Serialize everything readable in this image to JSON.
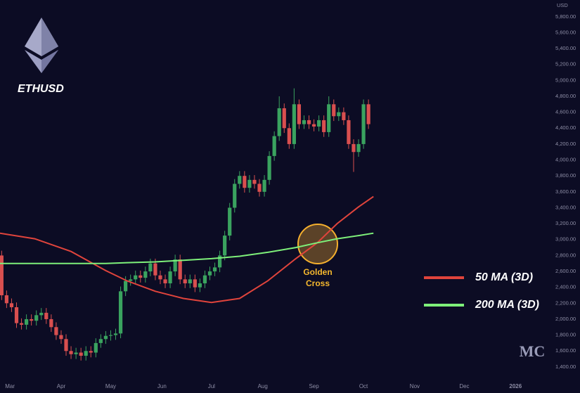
{
  "chart_data": {
    "type": "candlestick",
    "title": "ETHUSD",
    "y_axis_label": "USD",
    "annotation": [
      "Golden",
      "Cross"
    ],
    "watermark": "MC",
    "up_color": "#3aa35f",
    "down_color": "#d94f4f",
    "xlim": [
      -6,
      328
    ],
    "ylim": [
      1240,
      6010
    ],
    "xticks": [
      {
        "value": 0,
        "label": "Mar"
      },
      {
        "value": 31,
        "label": "Apr"
      },
      {
        "value": 61,
        "label": "May"
      },
      {
        "value": 92,
        "label": "Jun"
      },
      {
        "value": 122,
        "label": "Jul"
      },
      {
        "value": 153,
        "label": "Aug"
      },
      {
        "value": 184,
        "label": "Sep"
      },
      {
        "value": 214,
        "label": "Oct"
      },
      {
        "value": 245,
        "label": "Nov"
      },
      {
        "value": 275,
        "label": "Dec"
      },
      {
        "value": 306,
        "label": "2026"
      }
    ],
    "yticks": [
      {
        "value": 1400,
        "label": "1,400.00"
      },
      {
        "value": 1600,
        "label": "1,600.00"
      },
      {
        "value": 1800,
        "label": "1,800.00"
      },
      {
        "value": 2000,
        "label": "2,000.00"
      },
      {
        "value": 2200,
        "label": "2,200.00"
      },
      {
        "value": 2400,
        "label": "2,400.00"
      },
      {
        "value": 2600,
        "label": "2,600.00"
      },
      {
        "value": 2800,
        "label": "2,800.00"
      },
      {
        "value": 3000,
        "label": "3,000.00"
      },
      {
        "value": 3200,
        "label": "3,200.00"
      },
      {
        "value": 3400,
        "label": "3,400.00"
      },
      {
        "value": 3600,
        "label": "3,600.00"
      },
      {
        "value": 3800,
        "label": "3,800.00"
      },
      {
        "value": 4000,
        "label": "4,000.00"
      },
      {
        "value": 4200,
        "label": "4,200.00"
      },
      {
        "value": 4400,
        "label": "4,400.00"
      },
      {
        "value": 4600,
        "label": "4,600.00"
      },
      {
        "value": 4800,
        "label": "4,800.00"
      },
      {
        "value": 5000,
        "label": "5,000.00"
      },
      {
        "value": 5200,
        "label": "5,200.00"
      },
      {
        "value": 5400,
        "label": "5,400.00"
      },
      {
        "value": 5600,
        "label": "5,600.00"
      },
      {
        "value": 5800,
        "label": "5,800.00"
      }
    ],
    "x": [
      -5,
      -2,
      1,
      4,
      7,
      10,
      13,
      16,
      19,
      22,
      25,
      28,
      31,
      34,
      37,
      40,
      43,
      46,
      49,
      52,
      55,
      58,
      61,
      64,
      67,
      70,
      73,
      76,
      79,
      82,
      85,
      88,
      91,
      94,
      97,
      100,
      103,
      106,
      109,
      112,
      115,
      118,
      121,
      124,
      127,
      130,
      133,
      136,
      139,
      142,
      145,
      148,
      151,
      154,
      157,
      160,
      163,
      166,
      169,
      172,
      175,
      178,
      181,
      184,
      187,
      190,
      193,
      196,
      199,
      202,
      205,
      208,
      211,
      214,
      217
    ],
    "open": [
      2800,
      2300,
      2200,
      2150,
      1950,
      1930,
      2000,
      1980,
      2050,
      2080,
      2000,
      1900,
      1800,
      1750,
      1600,
      1560,
      1580,
      1540,
      1600,
      1580,
      1700,
      1750,
      1790,
      1800,
      1820,
      2350,
      2480,
      2500,
      2550,
      2520,
      2600,
      2700,
      2550,
      2500,
      2450,
      2600,
      2750,
      2500,
      2450,
      2500,
      2400,
      2450,
      2550,
      2600,
      2650,
      2800,
      3050,
      3400,
      3700,
      3800,
      3650,
      3750,
      3700,
      3600,
      3750,
      4050,
      4300,
      4650,
      4400,
      4200,
      4700,
      4450,
      4500,
      4450,
      4420,
      4500,
      4350,
      4700,
      4550,
      4600,
      4500,
      4200,
      4100,
      4200,
      4700
    ],
    "high": [
      2860,
      2360,
      2260,
      2210,
      2010,
      2060,
      2060,
      2110,
      2140,
      2140,
      2060,
      1960,
      1860,
      1810,
      1660,
      1640,
      1640,
      1660,
      1660,
      1760,
      1810,
      1850,
      1860,
      1880,
      2410,
      2540,
      2560,
      2610,
      2610,
      2660,
      2760,
      2760,
      2610,
      2560,
      2660,
      2810,
      2810,
      2560,
      2560,
      2560,
      2510,
      2610,
      2660,
      2710,
      2860,
      3110,
      3460,
      3760,
      3860,
      3860,
      3810,
      3810,
      3760,
      3810,
      4110,
      4360,
      4800,
      4710,
      4460,
      4900,
      4760,
      4560,
      4560,
      4510,
      4560,
      4560,
      4800,
      4760,
      4660,
      4660,
      4560,
      4260,
      4260,
      4760,
      4760
    ],
    "low": [
      2240,
      2140,
      2090,
      1890,
      1870,
      1870,
      1920,
      1920,
      1990,
      1940,
      1840,
      1740,
      1690,
      1540,
      1500,
      1500,
      1480,
      1480,
      1520,
      1520,
      1640,
      1690,
      1730,
      1740,
      1760,
      2290,
      2420,
      2440,
      2460,
      2460,
      2540,
      2490,
      2440,
      2390,
      2390,
      2540,
      2440,
      2390,
      2390,
      2340,
      2340,
      2390,
      2490,
      2540,
      2590,
      2740,
      2990,
      3340,
      3640,
      3590,
      3590,
      3640,
      3540,
      3540,
      3690,
      3990,
      4240,
      4340,
      4140,
      4140,
      4390,
      4390,
      4390,
      4360,
      4360,
      4290,
      4290,
      4490,
      4490,
      4440,
      4140,
      3850,
      4040,
      4140,
      4390
    ],
    "close": [
      2300,
      2200,
      2150,
      1950,
      1930,
      2000,
      1980,
      2050,
      2080,
      2000,
      1900,
      1800,
      1750,
      1600,
      1560,
      1580,
      1540,
      1600,
      1580,
      1700,
      1750,
      1790,
      1800,
      1820,
      2350,
      2480,
      2500,
      2550,
      2520,
      2600,
      2700,
      2550,
      2500,
      2450,
      2600,
      2750,
      2500,
      2450,
      2500,
      2400,
      2450,
      2550,
      2600,
      2650,
      2800,
      3050,
      3400,
      3700,
      3800,
      3650,
      3750,
      3700,
      3600,
      3750,
      4050,
      4300,
      4650,
      4400,
      4200,
      4700,
      4450,
      4500,
      4450,
      4420,
      4500,
      4350,
      4700,
      4550,
      4600,
      4500,
      4200,
      4100,
      4200,
      4700,
      4450
    ],
    "series": [
      {
        "name": "50 MA (3D)",
        "color": "#e0443c",
        "x": [
          -6,
          15,
          37,
          58,
          71,
          88,
          105,
          122,
          139,
          156,
          173,
          186,
          198,
          211,
          220
        ],
        "values": [
          3080,
          3010,
          2850,
          2610,
          2480,
          2350,
          2260,
          2210,
          2260,
          2480,
          2760,
          2960,
          3200,
          3410,
          3540
        ]
      },
      {
        "name": "200 MA (3D)",
        "color": "#7ef07a",
        "x": [
          -6,
          15,
          37,
          58,
          71,
          88,
          105,
          122,
          139,
          156,
          173,
          186,
          198,
          211,
          220
        ],
        "values": [
          2700,
          2700,
          2700,
          2700,
          2710,
          2720,
          2740,
          2760,
          2790,
          2840,
          2900,
          2960,
          3010,
          3050,
          3080
        ]
      }
    ]
  }
}
